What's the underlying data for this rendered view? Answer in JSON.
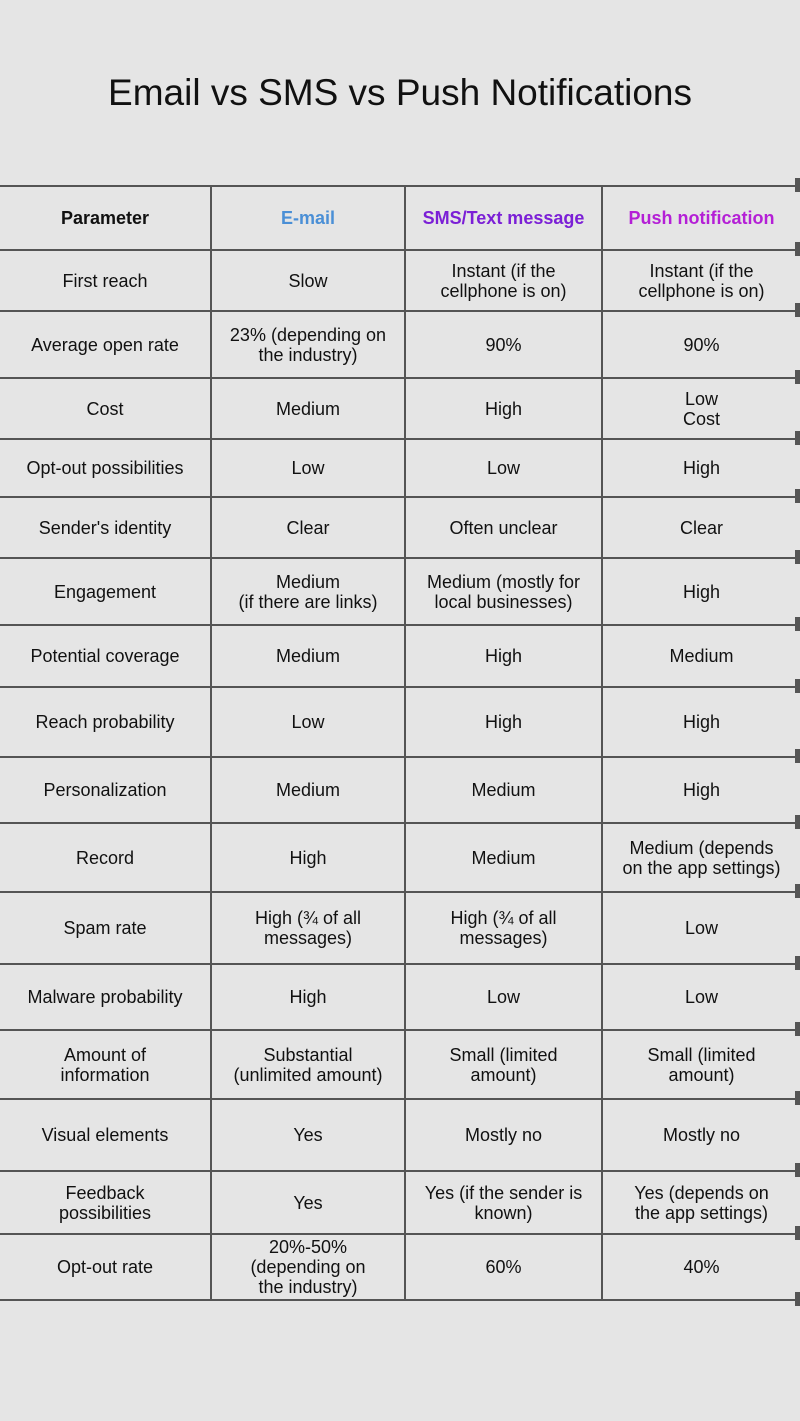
{
  "title": "Email vs SMS vs Push Notifications",
  "colors": {
    "email_header": "#4a8fd6",
    "sms_header": "#7b1fd6",
    "push_header": "#b41fd6",
    "grid": "#555555",
    "background": "#e5e5e5"
  },
  "table": {
    "headers": [
      "Parameter",
      "E-mail",
      "SMS/Text message",
      "Push notification"
    ],
    "rows": [
      [
        "First reach",
        "Slow",
        "Instant (if the\ncellphone is on)",
        "Instant (if the\ncellphone is on)"
      ],
      [
        "Average open rate",
        "23% (depending on\nthe industry)",
        "90%",
        "90%"
      ],
      [
        "Cost",
        "Medium",
        "High",
        "Low\nCost"
      ],
      [
        "Opt-out possibilities",
        "Low",
        "Low",
        "High"
      ],
      [
        "Sender's identity",
        "Clear",
        "Often unclear",
        "Clear"
      ],
      [
        "Engagement",
        "Medium\n(if there are links)",
        "Medium (mostly for\nlocal businesses)",
        "High"
      ],
      [
        "Potential coverage",
        "Medium",
        "High",
        "Medium"
      ],
      [
        "Reach probability",
        "Low",
        "High",
        "High"
      ],
      [
        "Personalization",
        "Medium",
        "Medium",
        "High"
      ],
      [
        "Record",
        "High",
        "Medium",
        "Medium (depends\non the app settings)"
      ],
      [
        "Spam rate",
        "High (¾ of all\nmessages)",
        "High (¾ of all\nmessages)",
        "Low"
      ],
      [
        "Malware probability",
        "High",
        "Low",
        "Low"
      ],
      [
        "Amount of\ninformation",
        "Substantial\n(unlimited amount)",
        "Small (limited\namount)",
        "Small (limited\namount)"
      ],
      [
        "Visual elements",
        "Yes",
        "Mostly no",
        "Mostly no"
      ],
      [
        "Feedback\npossibilities",
        "Yes",
        "Yes (if the sender is\nknown)",
        "Yes (depends on\nthe app settings)"
      ],
      [
        "Opt-out rate",
        "20%-50%\n(depending on\nthe industry)",
        "60%",
        "40%"
      ]
    ]
  }
}
